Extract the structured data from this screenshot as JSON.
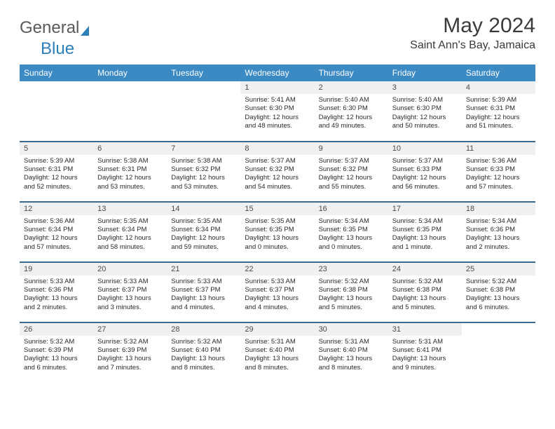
{
  "brand": {
    "part1": "General",
    "part2": "Blue"
  },
  "title": "May 2024",
  "location": "Saint Ann's Bay, Jamaica",
  "dow": [
    "Sunday",
    "Monday",
    "Tuesday",
    "Wednesday",
    "Thursday",
    "Friday",
    "Saturday"
  ],
  "colors": {
    "header_bg": "#3b8ac4",
    "header_text": "#ffffff",
    "daynum_bg": "#eef0f1",
    "rule": "#3b6a8f",
    "brand_gray": "#5a5a5a",
    "brand_blue": "#2c7fb8"
  },
  "weeks": [
    [
      {
        "n": "",
        "sr": "",
        "ss": "",
        "dl": ""
      },
      {
        "n": "",
        "sr": "",
        "ss": "",
        "dl": ""
      },
      {
        "n": "",
        "sr": "",
        "ss": "",
        "dl": ""
      },
      {
        "n": "1",
        "sr": "5:41 AM",
        "ss": "6:30 PM",
        "dl": "12 hours and 48 minutes."
      },
      {
        "n": "2",
        "sr": "5:40 AM",
        "ss": "6:30 PM",
        "dl": "12 hours and 49 minutes."
      },
      {
        "n": "3",
        "sr": "5:40 AM",
        "ss": "6:30 PM",
        "dl": "12 hours and 50 minutes."
      },
      {
        "n": "4",
        "sr": "5:39 AM",
        "ss": "6:31 PM",
        "dl": "12 hours and 51 minutes."
      }
    ],
    [
      {
        "n": "5",
        "sr": "5:39 AM",
        "ss": "6:31 PM",
        "dl": "12 hours and 52 minutes."
      },
      {
        "n": "6",
        "sr": "5:38 AM",
        "ss": "6:31 PM",
        "dl": "12 hours and 53 minutes."
      },
      {
        "n": "7",
        "sr": "5:38 AM",
        "ss": "6:32 PM",
        "dl": "12 hours and 53 minutes."
      },
      {
        "n": "8",
        "sr": "5:37 AM",
        "ss": "6:32 PM",
        "dl": "12 hours and 54 minutes."
      },
      {
        "n": "9",
        "sr": "5:37 AM",
        "ss": "6:32 PM",
        "dl": "12 hours and 55 minutes."
      },
      {
        "n": "10",
        "sr": "5:37 AM",
        "ss": "6:33 PM",
        "dl": "12 hours and 56 minutes."
      },
      {
        "n": "11",
        "sr": "5:36 AM",
        "ss": "6:33 PM",
        "dl": "12 hours and 57 minutes."
      }
    ],
    [
      {
        "n": "12",
        "sr": "5:36 AM",
        "ss": "6:34 PM",
        "dl": "12 hours and 57 minutes."
      },
      {
        "n": "13",
        "sr": "5:35 AM",
        "ss": "6:34 PM",
        "dl": "12 hours and 58 minutes."
      },
      {
        "n": "14",
        "sr": "5:35 AM",
        "ss": "6:34 PM",
        "dl": "12 hours and 59 minutes."
      },
      {
        "n": "15",
        "sr": "5:35 AM",
        "ss": "6:35 PM",
        "dl": "13 hours and 0 minutes."
      },
      {
        "n": "16",
        "sr": "5:34 AM",
        "ss": "6:35 PM",
        "dl": "13 hours and 0 minutes."
      },
      {
        "n": "17",
        "sr": "5:34 AM",
        "ss": "6:35 PM",
        "dl": "13 hours and 1 minute."
      },
      {
        "n": "18",
        "sr": "5:34 AM",
        "ss": "6:36 PM",
        "dl": "13 hours and 2 minutes."
      }
    ],
    [
      {
        "n": "19",
        "sr": "5:33 AM",
        "ss": "6:36 PM",
        "dl": "13 hours and 2 minutes."
      },
      {
        "n": "20",
        "sr": "5:33 AM",
        "ss": "6:37 PM",
        "dl": "13 hours and 3 minutes."
      },
      {
        "n": "21",
        "sr": "5:33 AM",
        "ss": "6:37 PM",
        "dl": "13 hours and 4 minutes."
      },
      {
        "n": "22",
        "sr": "5:33 AM",
        "ss": "6:37 PM",
        "dl": "13 hours and 4 minutes."
      },
      {
        "n": "23",
        "sr": "5:32 AM",
        "ss": "6:38 PM",
        "dl": "13 hours and 5 minutes."
      },
      {
        "n": "24",
        "sr": "5:32 AM",
        "ss": "6:38 PM",
        "dl": "13 hours and 5 minutes."
      },
      {
        "n": "25",
        "sr": "5:32 AM",
        "ss": "6:38 PM",
        "dl": "13 hours and 6 minutes."
      }
    ],
    [
      {
        "n": "26",
        "sr": "5:32 AM",
        "ss": "6:39 PM",
        "dl": "13 hours and 6 minutes."
      },
      {
        "n": "27",
        "sr": "5:32 AM",
        "ss": "6:39 PM",
        "dl": "13 hours and 7 minutes."
      },
      {
        "n": "28",
        "sr": "5:32 AM",
        "ss": "6:40 PM",
        "dl": "13 hours and 8 minutes."
      },
      {
        "n": "29",
        "sr": "5:31 AM",
        "ss": "6:40 PM",
        "dl": "13 hours and 8 minutes."
      },
      {
        "n": "30",
        "sr": "5:31 AM",
        "ss": "6:40 PM",
        "dl": "13 hours and 8 minutes."
      },
      {
        "n": "31",
        "sr": "5:31 AM",
        "ss": "6:41 PM",
        "dl": "13 hours and 9 minutes."
      },
      {
        "n": "",
        "sr": "",
        "ss": "",
        "dl": ""
      }
    ]
  ],
  "labels": {
    "sunrise": "Sunrise: ",
    "sunset": "Sunset: ",
    "daylight": "Daylight: "
  }
}
